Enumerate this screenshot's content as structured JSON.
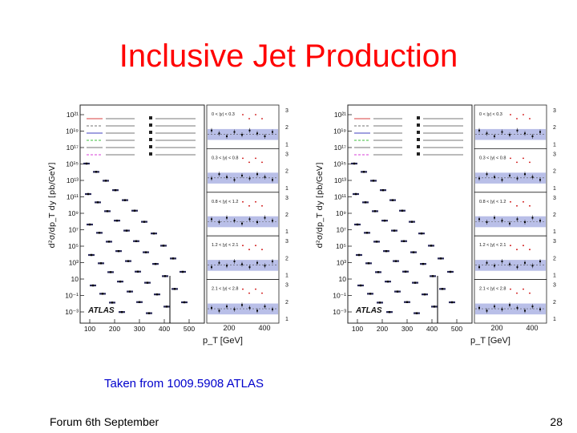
{
  "slide": {
    "title": "Inclusive Jet Production",
    "caption": "Taken from 1009.5908 ATLAS",
    "footer_left": "Forum 6th September",
    "page_number": "28"
  },
  "figures": [
    {
      "ylabel": "d²σ/dp_T dy [pb/GeV]",
      "xlabel": "p_T [GeV]",
      "logo": "ATLAS",
      "y_ticks": [
        "10²¹",
        "10¹⁹",
        "10¹⁷",
        "10¹⁵",
        "10¹³",
        "10¹¹",
        "10⁹",
        "10⁷",
        "10⁵",
        "10³",
        "10",
        "10⁻¹",
        "10⁻³"
      ],
      "x_ticks_main": [
        "100",
        "200",
        "300",
        "400",
        "500"
      ],
      "x_ticks_ratio": [
        "200",
        "400"
      ],
      "ratio_ticks": [
        "3",
        "2",
        "1"
      ],
      "ratio_labels": [
        "0 < |y| < 0.3",
        "0.3 < |y| < 0.8",
        "0.8 < |y| < 1.2",
        "1.2 < |y| < 2.1",
        "2.1 < |y| < 2.8"
      ]
    },
    {
      "ylabel": "d²σ/dp_T dy [pb/GeV]",
      "xlabel": "p_T [GeV]",
      "logo": "ATLAS",
      "y_ticks": [
        "10²¹",
        "10¹⁹",
        "10¹⁷",
        "10¹⁵",
        "10¹³",
        "10¹¹",
        "10⁹",
        "10⁷",
        "10⁵",
        "10³",
        "10",
        "10⁻¹",
        "10⁻³"
      ],
      "x_ticks_main": [
        "100",
        "200",
        "300",
        "400",
        "500"
      ],
      "x_ticks_ratio": [
        "200",
        "400"
      ],
      "ratio_ticks": [
        "3",
        "2",
        "1"
      ],
      "ratio_labels": [
        "0 < |y| < 0.3",
        "0.3 < |y| < 0.8",
        "0.8 < |y| < 1.2",
        "1.2 < |y| < 2.1",
        "2.1 < |y| < 2.8"
      ]
    }
  ]
}
